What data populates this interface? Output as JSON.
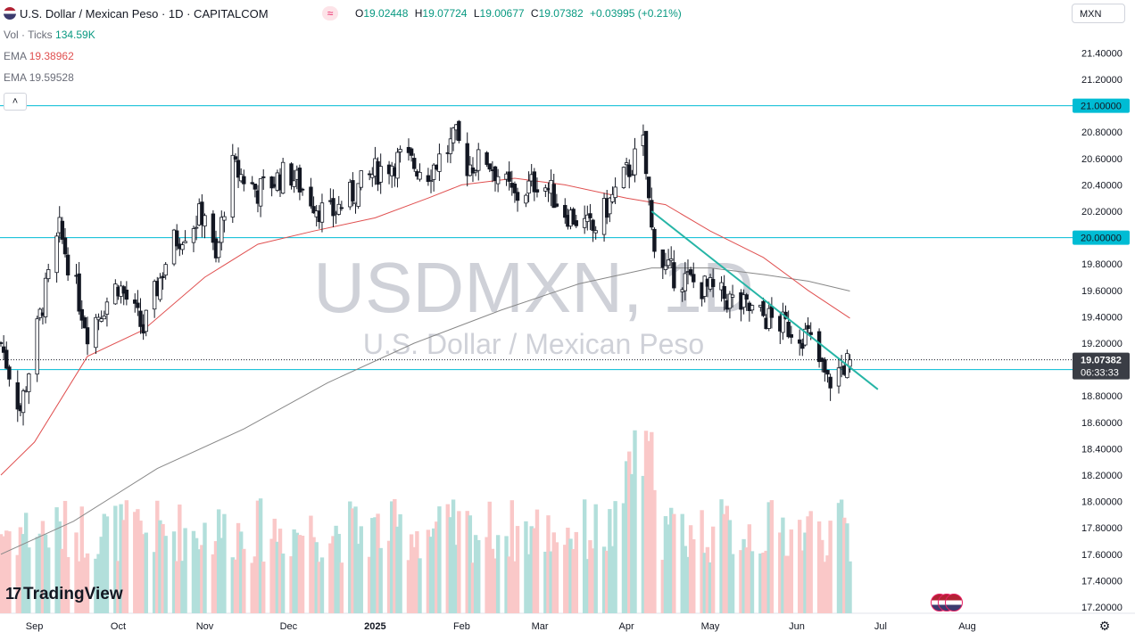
{
  "header": {
    "symbol_title": "U.S. Dollar / Mexican Peso · 1D · CAPITALCOM",
    "ohlc": [
      {
        "key": "O",
        "value": "19.02448"
      },
      {
        "key": "H",
        "value": "19.07724"
      },
      {
        "key": "L",
        "value": "19.00677"
      },
      {
        "key": "C",
        "value": "19.07382"
      }
    ],
    "change": "+0.03995 (+0.21%)",
    "currency": "MXN"
  },
  "indicators": {
    "volume_label": "Vol · Ticks",
    "volume_value": "134.59K",
    "ema1_label": "EMA",
    "ema1_value": "19.38962",
    "ema2_label": "EMA",
    "ema2_value": "19.59528"
  },
  "watermark": {
    "line1": "USDMXN, 1D",
    "line2": "U.S. Dollar / Mexican Peso"
  },
  "branding": {
    "logo_text": "TradingView"
  },
  "colors": {
    "up": "#26a69a",
    "down": "#ef5350",
    "candle": "#131722",
    "hline": "#00bcd4",
    "ema_fast": "#e05050",
    "ema_slow": "#888888",
    "trendline": "#26b5a6",
    "vol_up": "#b2dfdb",
    "vol_down": "#fac8c8"
  },
  "chart_data": {
    "type": "candlestick",
    "ylim": [
      17.2,
      21.45
    ],
    "y_ticks": [
      "21.40000",
      "21.20000",
      "21.00000",
      "20.80000",
      "20.60000",
      "20.40000",
      "20.20000",
      "20.00000",
      "19.80000",
      "19.60000",
      "19.40000",
      "19.20000",
      "19.00000",
      "18.80000",
      "18.60000",
      "18.40000",
      "18.20000",
      "18.00000",
      "17.80000",
      "17.60000",
      "17.40000",
      "17.20000"
    ],
    "x_ticks": [
      "Sep",
      "Oct",
      "Nov",
      "Dec",
      "2025",
      "Feb",
      "Mar",
      "Apr",
      "May",
      "Jun",
      "Jul",
      "Aug"
    ],
    "horizontal_levels": [
      {
        "label": "21.00000",
        "value": 21.0
      },
      {
        "label": "20.00000",
        "value": 20.0
      },
      {
        "label": "19.00000",
        "value": 19.0
      }
    ],
    "last_price": {
      "label": "19.07382",
      "value": 19.07382,
      "countdown": "06:33:33"
    },
    "anchors": [
      {
        "date": "Aug 20",
        "close": 19.2
      },
      {
        "date": "Aug 27",
        "close": 18.7
      },
      {
        "date": "Sep 4",
        "close": 19.5
      },
      {
        "date": "Sep 10",
        "close": 20.05
      },
      {
        "date": "Sep 20",
        "close": 19.3
      },
      {
        "date": "Oct 1",
        "close": 19.65
      },
      {
        "date": "Oct 10",
        "close": 19.3
      },
      {
        "date": "Oct 20",
        "close": 19.95
      },
      {
        "date": "Nov 1",
        "close": 20.2
      },
      {
        "date": "Nov 5",
        "close": 19.8
      },
      {
        "date": "Nov 10",
        "close": 20.55
      },
      {
        "date": "Nov 20",
        "close": 20.35
      },
      {
        "date": "Dec 1",
        "close": 20.5
      },
      {
        "date": "Dec 15",
        "close": 20.15
      },
      {
        "date": "Jan 1",
        "close": 20.5
      },
      {
        "date": "Jan 10",
        "close": 20.6
      },
      {
        "date": "Jan 20",
        "close": 20.5
      },
      {
        "date": "Jan 30",
        "close": 20.75
      },
      {
        "date": "Feb 3",
        "close": 20.55
      },
      {
        "date": "Feb 10",
        "close": 20.6
      },
      {
        "date": "Feb 20",
        "close": 20.3
      },
      {
        "date": "Mar 1",
        "close": 20.45
      },
      {
        "date": "Mar 10",
        "close": 20.2
      },
      {
        "date": "Mar 20",
        "close": 20.05
      },
      {
        "date": "Mar 31",
        "close": 20.45
      },
      {
        "date": "Apr 7",
        "close": 20.7
      },
      {
        "date": "Apr 10",
        "close": 20.05
      },
      {
        "date": "Apr 15",
        "close": 19.75
      },
      {
        "date": "May 1",
        "close": 19.6
      },
      {
        "date": "May 15",
        "close": 19.45
      },
      {
        "date": "May 31",
        "close": 19.3
      },
      {
        "date": "Jun 5",
        "close": 19.25
      },
      {
        "date": "Jun 12",
        "close": 18.9
      },
      {
        "date": "Jun 20",
        "close": 19.07382
      }
    ],
    "ema_fast": [
      {
        "date": "Aug 20",
        "value": 18.2
      },
      {
        "date": "Sep 1",
        "value": 18.45
      },
      {
        "date": "Sep 20",
        "value": 19.1
      },
      {
        "date": "Oct 10",
        "value": 19.3
      },
      {
        "date": "Nov 1",
        "value": 19.7
      },
      {
        "date": "Nov 20",
        "value": 19.95
      },
      {
        "date": "Dec 10",
        "value": 20.05
      },
      {
        "date": "Jan 1",
        "value": 20.15
      },
      {
        "date": "Jan 20",
        "value": 20.3
      },
      {
        "date": "Feb 1",
        "value": 20.4
      },
      {
        "date": "Feb 20",
        "value": 20.45
      },
      {
        "date": "Mar 10",
        "value": 20.4
      },
      {
        "date": "Apr 1",
        "value": 20.3
      },
      {
        "date": "Apr 15",
        "value": 20.25
      },
      {
        "date": "May 1",
        "value": 20.05
      },
      {
        "date": "May 20",
        "value": 19.85
      },
      {
        "date": "Jun 5",
        "value": 19.6
      },
      {
        "date": "Jun 20",
        "value": 19.38962
      }
    ],
    "ema_slow": [
      {
        "date": "Aug 20",
        "value": 17.6
      },
      {
        "date": "Sep 15",
        "value": 17.85
      },
      {
        "date": "Oct 15",
        "value": 18.25
      },
      {
        "date": "Nov 15",
        "value": 18.55
      },
      {
        "date": "Dec 15",
        "value": 18.9
      },
      {
        "date": "Jan 15",
        "value": 19.2
      },
      {
        "date": "Feb 15",
        "value": 19.45
      },
      {
        "date": "Mar 15",
        "value": 19.65
      },
      {
        "date": "Apr 10",
        "value": 19.77
      },
      {
        "date": "May 1",
        "value": 19.77
      },
      {
        "date": "May 20",
        "value": 19.72
      },
      {
        "date": "Jun 5",
        "value": 19.67
      },
      {
        "date": "Jun 20",
        "value": 19.59528
      }
    ],
    "trendline": [
      {
        "date": "Apr 10",
        "value": 20.2
      },
      {
        "date": "Jun 30",
        "value": 18.85
      }
    ]
  }
}
